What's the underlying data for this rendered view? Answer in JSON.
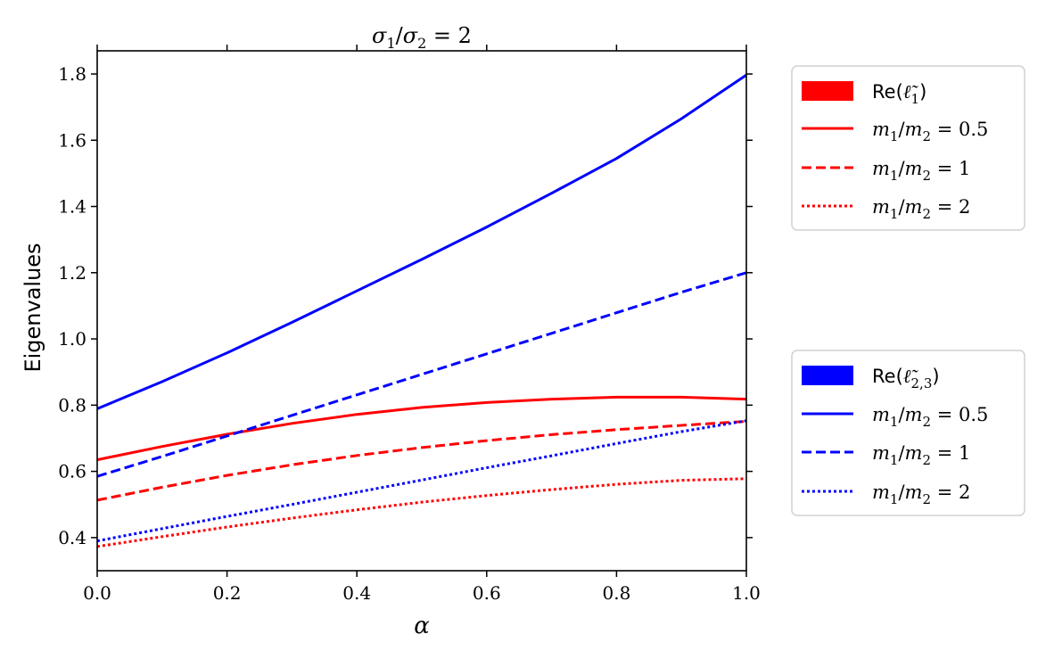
{
  "chart_data": {
    "type": "line",
    "title": "σ1/σ2 = 2",
    "xlabel": "α",
    "ylabel": "Eigenvalues",
    "xlim": [
      0.0,
      1.0
    ],
    "ylim": [
      0.3,
      1.87
    ],
    "xticks": [
      0.0,
      0.2,
      0.4,
      0.6,
      0.8,
      1.0
    ],
    "xtick_labels": [
      "0.0",
      "0.2",
      "0.4",
      "0.6",
      "0.8",
      "1.0"
    ],
    "yticks": [
      0.4,
      0.6,
      0.8,
      1.0,
      1.2,
      1.4,
      1.6,
      1.8
    ],
    "ytick_labels": [
      "0.4",
      "0.6",
      "0.8",
      "1.0",
      "1.2",
      "1.4",
      "1.6",
      "1.8"
    ],
    "grid": false,
    "x": [
      0.0,
      0.1,
      0.2,
      0.3,
      0.4,
      0.5,
      0.6,
      0.7,
      0.8,
      0.9,
      1.0
    ],
    "colors": {
      "red": "#ff0000",
      "blue": "#0000ff"
    },
    "legends": [
      {
        "placement": "right-upper",
        "patch_color": "#ff0000",
        "patch_label": "Re(ℓ̃₁)",
        "entries": [
          {
            "style": "solid",
            "label": "m1/m2 = 0.5"
          },
          {
            "style": "dashed",
            "label": "m1/m2 = 1"
          },
          {
            "style": "dotted",
            "label": "m1/m2 = 2"
          }
        ]
      },
      {
        "placement": "right-lower",
        "patch_color": "#0000ff",
        "patch_label": "Re(ℓ̃₂,₃)",
        "entries": [
          {
            "style": "solid",
            "label": "m1/m2 = 0.5"
          },
          {
            "style": "dashed",
            "label": "m1/m2 = 1"
          },
          {
            "style": "dotted",
            "label": "m1/m2 = 2"
          }
        ]
      }
    ],
    "series": [
      {
        "group": "Re(ℓ̃₁)",
        "color": "#ff0000",
        "style": "solid",
        "values": [
          0.635,
          0.675,
          0.712,
          0.745,
          0.772,
          0.793,
          0.808,
          0.818,
          0.824,
          0.824,
          0.818
        ]
      },
      {
        "group": "Re(ℓ̃₁)",
        "color": "#ff0000",
        "style": "dashed",
        "values": [
          0.513,
          0.552,
          0.588,
          0.62,
          0.648,
          0.672,
          0.693,
          0.711,
          0.726,
          0.739,
          0.751
        ]
      },
      {
        "group": "Re(ℓ̃₁)",
        "color": "#ff0000",
        "style": "dotted",
        "values": [
          0.373,
          0.403,
          0.432,
          0.459,
          0.484,
          0.507,
          0.527,
          0.545,
          0.561,
          0.573,
          0.578
        ]
      },
      {
        "group": "Re(ℓ̃₂,₃)",
        "color": "#0000ff",
        "style": "solid",
        "values": [
          0.789,
          0.871,
          0.958,
          1.05,
          1.145,
          1.24,
          1.338,
          1.44,
          1.545,
          1.665,
          1.797
        ]
      },
      {
        "group": "Re(ℓ̃₂,₃)",
        "color": "#0000ff",
        "style": "dashed",
        "values": [
          0.585,
          0.645,
          0.707,
          0.769,
          0.831,
          0.893,
          0.955,
          1.017,
          1.079,
          1.141,
          1.2
        ]
      },
      {
        "group": "Re(ℓ̃₂,₃)",
        "color": "#0000ff",
        "style": "dotted",
        "values": [
          0.39,
          0.427,
          0.464,
          0.5,
          0.537,
          0.574,
          0.611,
          0.647,
          0.684,
          0.72,
          0.753
        ]
      }
    ]
  }
}
